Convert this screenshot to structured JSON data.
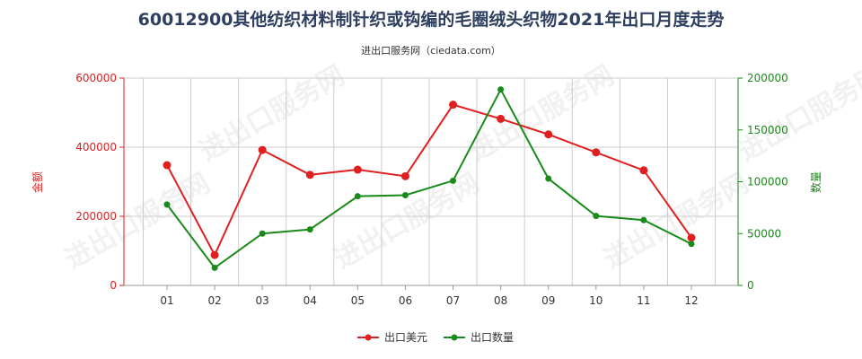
{
  "chart_data": {
    "type": "line",
    "title": "60012900其他纺织材料制针织或钩编的毛圈绒头织物2021年出口月度走势",
    "subtitle": "进出口服务网（ciedata.com）",
    "categories": [
      "01",
      "02",
      "03",
      "04",
      "05",
      "06",
      "07",
      "08",
      "09",
      "10",
      "11",
      "12"
    ],
    "y_left": {
      "label": "金额",
      "ticks": [
        "0",
        "200000",
        "400000",
        "600000"
      ],
      "ylim": [
        0,
        600000
      ],
      "color": "#e02020"
    },
    "y_right": {
      "label": "数量",
      "ticks": [
        "0",
        "50000",
        "100000",
        "150000",
        "200000"
      ],
      "ylim": [
        0,
        200000
      ],
      "color": "#1a8a1a"
    },
    "series": [
      {
        "name": "出口美元",
        "axis": "left",
        "color": "#e02020",
        "values": [
          348000,
          88000,
          392000,
          320000,
          335000,
          316000,
          523000,
          482000,
          437000,
          385000,
          333000,
          138000
        ]
      },
      {
        "name": "出口数量",
        "axis": "right",
        "color": "#1a8a1a",
        "values": [
          78000,
          17000,
          50000,
          54000,
          86000,
          87000,
          101000,
          189000,
          103000,
          67000,
          63000,
          40000
        ]
      }
    ],
    "grid": true,
    "legend_position": "bottom-center",
    "watermark_text": "进出口服务网"
  }
}
